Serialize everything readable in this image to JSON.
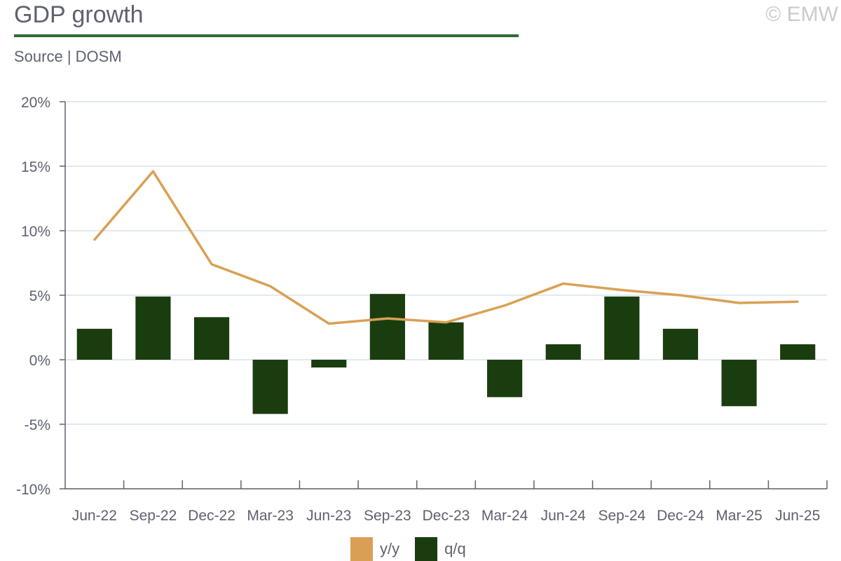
{
  "header": {
    "title": "GDP growth",
    "source": "Source | DOSM",
    "copyright": "© EMW"
  },
  "colors": {
    "accent_rule": "#2e6b2e",
    "bar": "#1a3d0f",
    "line": "#d9a055",
    "grid": "#d8e2ea",
    "axis": "#5d6270"
  },
  "chart_data": {
    "type": "bar",
    "categories": [
      "Jun-22",
      "Sep-22",
      "Dec-22",
      "Mar-23",
      "Jun-23",
      "Sep-23",
      "Dec-23",
      "Mar-24",
      "Jun-24",
      "Sep-24",
      "Dec-24",
      "Mar-25",
      "Jun-25"
    ],
    "series": [
      {
        "name": "q/q",
        "type": "bar",
        "color": "#1a3d0f",
        "values": [
          2.4,
          4.9,
          3.3,
          -4.2,
          -0.6,
          5.1,
          2.9,
          -2.9,
          1.2,
          4.9,
          2.4,
          -3.6,
          1.2
        ]
      },
      {
        "name": "y/y",
        "type": "line",
        "color": "#d9a055",
        "values": [
          9.3,
          14.6,
          7.4,
          5.7,
          2.8,
          3.2,
          2.9,
          4.2,
          5.9,
          5.4,
          5.0,
          4.4,
          4.5
        ]
      }
    ],
    "ylim": [
      -10,
      20
    ],
    "yticks": [
      20,
      15,
      10,
      5,
      0,
      -5,
      -10
    ],
    "ytick_labels": [
      "20%",
      "15%",
      "10%",
      "5%",
      "0%",
      "-5%",
      "-10%"
    ],
    "grid": true,
    "legend_position": "bottom-center",
    "legend": [
      {
        "label": "y/y",
        "color": "#d9a055"
      },
      {
        "label": "q/q",
        "color": "#1a3d0f"
      }
    ]
  }
}
